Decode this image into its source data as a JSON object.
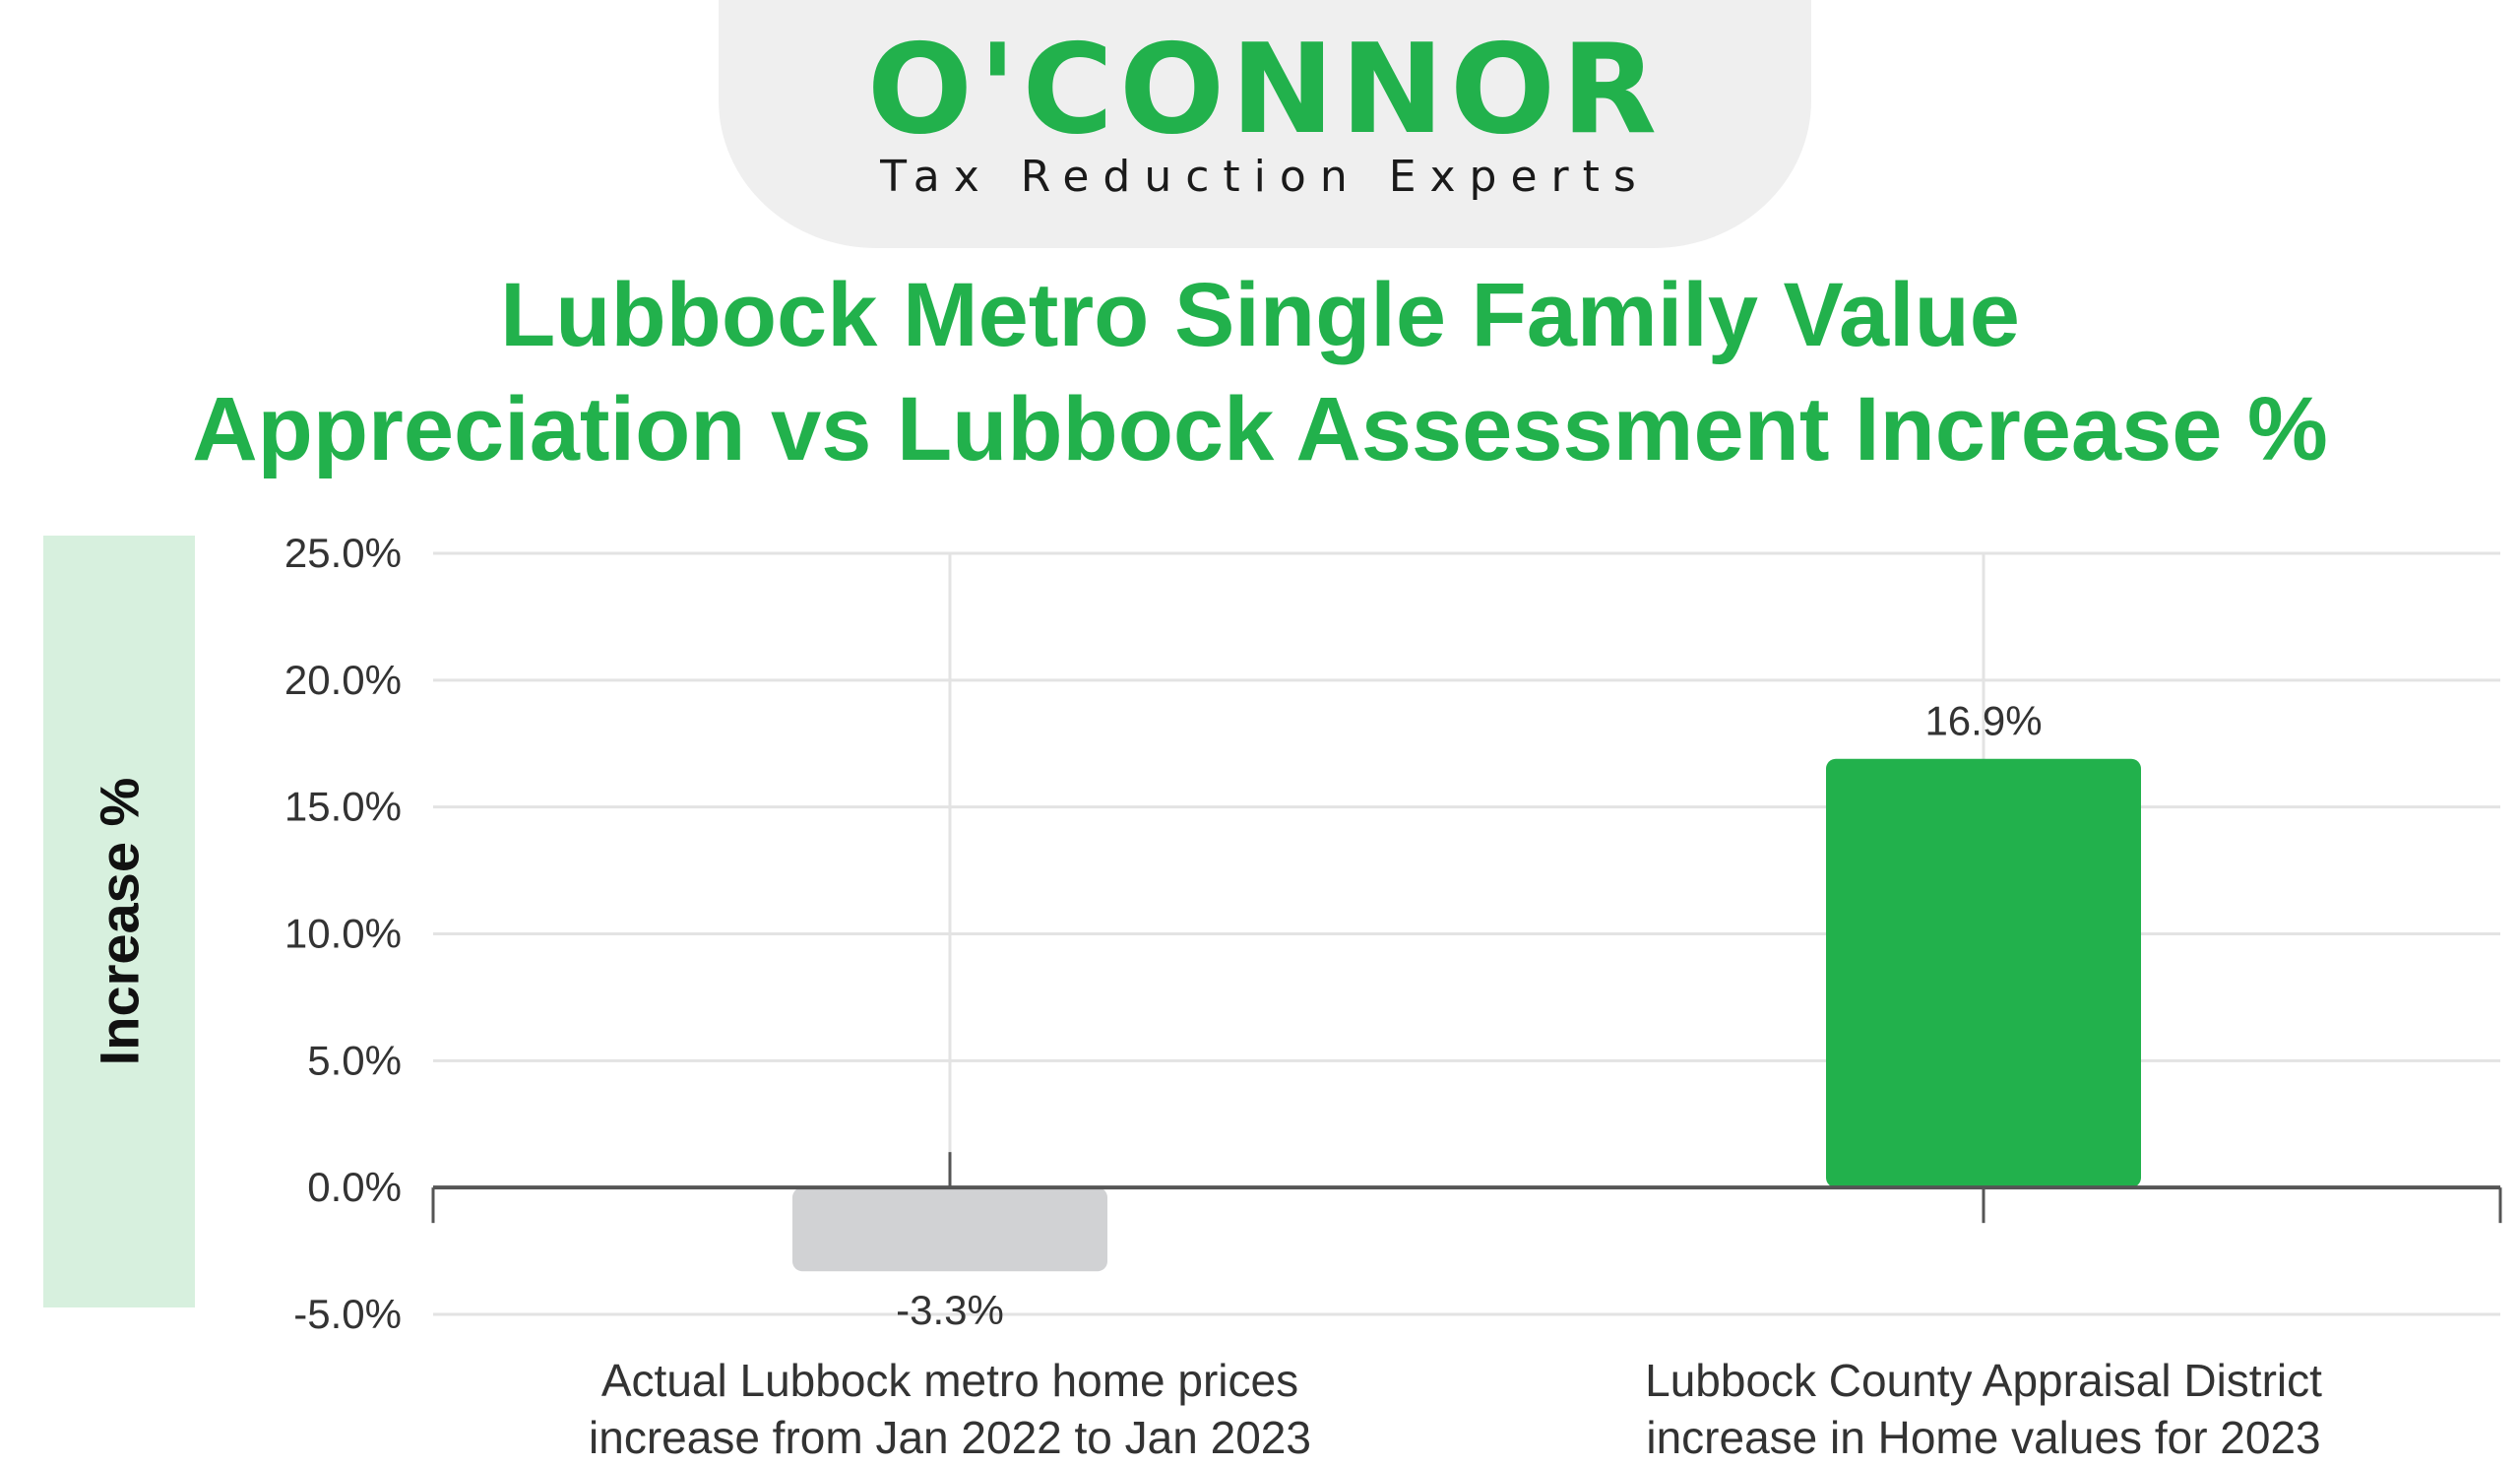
{
  "logo": {
    "name": "O'CONNOR",
    "tagline": "Tax Reduction Experts"
  },
  "colors": {
    "brand_green": "#22b14c",
    "bar_negative": "#d1d2d4",
    "bar_positive": "#22b14c",
    "grid": "#e3e3e3",
    "axis": "#555555",
    "ylabel_bg": "#d7f0de"
  },
  "chart_data": {
    "type": "bar",
    "title_line1": "Lubbock Metro Single Family Value",
    "title_line2": "Appreciation vs Lubbock Assessment Increase %",
    "xlabel": "",
    "ylabel": "Increase %",
    "ylim": [
      -5,
      25
    ],
    "yticks": [
      25,
      20,
      15,
      10,
      5,
      0,
      -5
    ],
    "ytick_labels": [
      "25.0%",
      "20.0%",
      "15.0%",
      "10.0%",
      "5.0%",
      "0.0%",
      "-5.0%"
    ],
    "grid": true,
    "categories": [
      [
        "Actual Lubbock metro home prices",
        "increase from Jan 2022 to Jan 2023"
      ],
      [
        "Lubbock County Appraisal District",
        "increase in Home values for 2023"
      ]
    ],
    "values": [
      -3.3,
      16.9
    ],
    "value_labels": [
      "-3.3%",
      "16.9%"
    ],
    "bar_colors": [
      "#d1d2d4",
      "#22b14c"
    ]
  }
}
